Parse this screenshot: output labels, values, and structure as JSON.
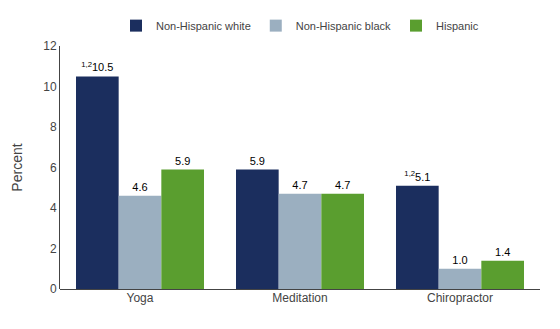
{
  "chart_data": {
    "type": "bar",
    "categories": [
      "Yoga",
      "Meditation",
      "Chiropractor"
    ],
    "series": [
      {
        "name": "Non-Hispanic white",
        "color": "#1b2e5e",
        "values": [
          10.5,
          5.9,
          5.1
        ],
        "annotations": [
          "1,2",
          null,
          "1,2"
        ]
      },
      {
        "name": "Non-Hispanic black",
        "color": "#9bafc0",
        "values": [
          4.6,
          4.7,
          1.0
        ],
        "value_labels": [
          "4.6",
          "4.7",
          "1.0"
        ]
      },
      {
        "name": "Hispanic",
        "color": "#5a9e2f",
        "values": [
          5.9,
          4.7,
          1.4
        ]
      }
    ],
    "ylabel": "Percent",
    "ylim": [
      0,
      12
    ],
    "yticks": [
      0,
      2,
      4,
      6,
      8,
      10,
      12
    ],
    "grid": false,
    "legend": "top",
    "data_labels": true
  }
}
